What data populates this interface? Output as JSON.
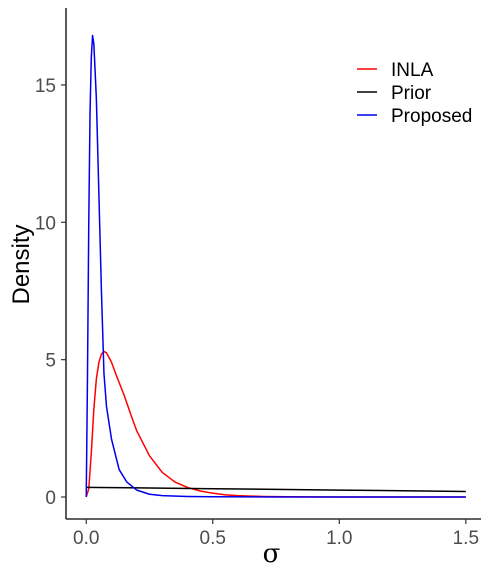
{
  "chart_data": {
    "type": "line",
    "title": "",
    "xlabel": "σ",
    "ylabel": "Density",
    "xlim": [
      -0.08,
      1.56
    ],
    "ylim": [
      -0.8,
      17.8
    ],
    "xticks": [
      0.0,
      0.5,
      1.0,
      1.5
    ],
    "xtick_labels": [
      "0.0",
      "0.5",
      "1.0",
      "1.5"
    ],
    "yticks": [
      0,
      5,
      10,
      15
    ],
    "ytick_labels": [
      "0",
      "5",
      "10",
      "15"
    ],
    "grid": false,
    "legend_position": "top-right",
    "series": [
      {
        "name": "INLA",
        "color": "#ff0000",
        "points": [
          [
            0.0,
            0.0
          ],
          [
            0.01,
            0.3
          ],
          [
            0.02,
            1.6
          ],
          [
            0.03,
            3.2
          ],
          [
            0.04,
            4.3
          ],
          [
            0.05,
            4.9
          ],
          [
            0.06,
            5.2
          ],
          [
            0.07,
            5.3
          ],
          [
            0.08,
            5.25
          ],
          [
            0.1,
            4.9
          ],
          [
            0.12,
            4.4
          ],
          [
            0.15,
            3.7
          ],
          [
            0.18,
            2.9
          ],
          [
            0.2,
            2.4
          ],
          [
            0.25,
            1.5
          ],
          [
            0.3,
            0.9
          ],
          [
            0.35,
            0.55
          ],
          [
            0.4,
            0.35
          ],
          [
            0.45,
            0.22
          ],
          [
            0.5,
            0.14
          ],
          [
            0.55,
            0.08
          ],
          [
            0.6,
            0.05
          ],
          [
            0.7,
            0.02
          ],
          [
            0.8,
            0.01
          ],
          [
            1.0,
            0.0
          ],
          [
            1.25,
            0.0
          ],
          [
            1.5,
            0.0
          ]
        ]
      },
      {
        "name": "Prior",
        "color": "#000000",
        "points": [
          [
            0.0,
            0.35
          ],
          [
            0.25,
            0.33
          ],
          [
            0.5,
            0.3
          ],
          [
            0.75,
            0.28
          ],
          [
            1.0,
            0.25
          ],
          [
            1.25,
            0.23
          ],
          [
            1.5,
            0.2
          ]
        ]
      },
      {
        "name": "Proposed",
        "color": "#0000ee",
        "points": [
          [
            0.0,
            0.0
          ],
          [
            0.005,
            4.5
          ],
          [
            0.01,
            10.0
          ],
          [
            0.015,
            14.0
          ],
          [
            0.02,
            16.0
          ],
          [
            0.025,
            16.8
          ],
          [
            0.03,
            16.5
          ],
          [
            0.04,
            14.5
          ],
          [
            0.05,
            11.0
          ],
          [
            0.06,
            7.5
          ],
          [
            0.07,
            4.5
          ],
          [
            0.08,
            3.3
          ],
          [
            0.1,
            2.1
          ],
          [
            0.13,
            1.0
          ],
          [
            0.16,
            0.55
          ],
          [
            0.2,
            0.25
          ],
          [
            0.25,
            0.1
          ],
          [
            0.3,
            0.05
          ],
          [
            0.4,
            0.02
          ],
          [
            0.5,
            0.01
          ],
          [
            0.75,
            0.0
          ],
          [
            1.0,
            0.0
          ],
          [
            1.25,
            0.0
          ],
          [
            1.5,
            0.0
          ]
        ]
      }
    ]
  }
}
